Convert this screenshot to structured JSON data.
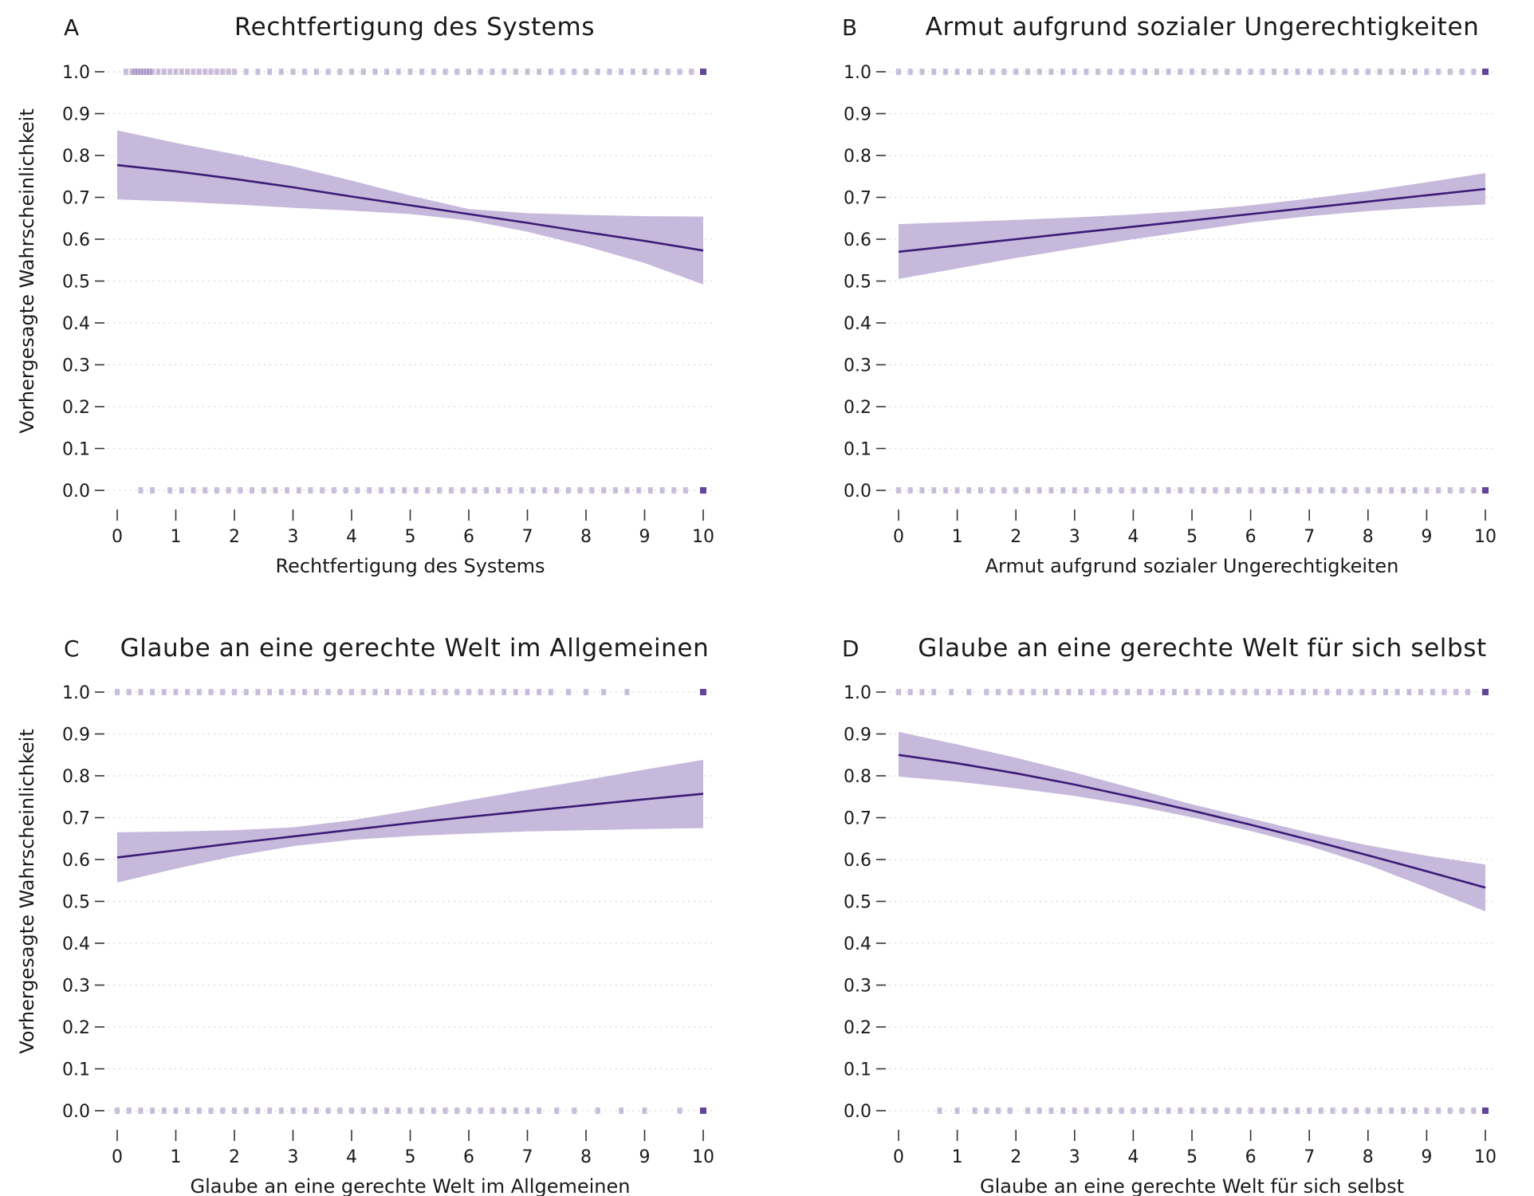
{
  "figure": {
    "ylabel": "Vorhergesagte Wahrscheinlichkeit",
    "colors": {
      "line": "#3d1a78",
      "band": "#c4b5d9",
      "rug": "#5a3a93"
    }
  },
  "chart_data": [
    {
      "type": "line",
      "panel": "A",
      "title": "Rechtfertigung des Systems",
      "xlabel": "Rechtfertigung des Systems",
      "ylabel": "Vorhergesagte Wahrscheinlichkeit",
      "xlim": [
        0,
        10
      ],
      "ylim": [
        0,
        1
      ],
      "x_ticks": [
        0,
        1,
        2,
        3,
        4,
        5,
        6,
        7,
        8,
        9,
        10
      ],
      "y_ticks": [
        "0.0",
        "0.1",
        "0.2",
        "0.3",
        "0.4",
        "0.5",
        "0.6",
        "0.7",
        "0.8",
        "0.9",
        "1.0"
      ],
      "series": [
        {
          "x": [
            0,
            1,
            2,
            3,
            4,
            5,
            6,
            7,
            8,
            9,
            10
          ],
          "y": [
            0.777,
            0.762,
            0.744,
            0.724,
            0.702,
            0.681,
            0.66,
            0.639,
            0.617,
            0.596,
            0.573
          ],
          "ci_lower": [
            0.695,
            0.69,
            0.683,
            0.675,
            0.668,
            0.66,
            0.645,
            0.618,
            0.583,
            0.543,
            0.492
          ],
          "ci_upper": [
            0.86,
            0.83,
            0.803,
            0.774,
            0.74,
            0.704,
            0.672,
            0.662,
            0.658,
            0.655,
            0.654
          ]
        }
      ],
      "rug_y1": [
        0.15,
        0.25,
        0.3,
        0.35,
        0.4,
        0.45,
        0.5,
        0.55,
        0.6,
        0.7,
        0.8,
        0.9,
        1.0,
        1.1,
        1.2,
        1.3,
        1.4,
        1.5,
        1.6,
        1.7,
        1.8,
        1.9,
        2.0,
        2.2,
        2.4,
        2.6,
        2.8,
        3.0,
        3.2,
        3.4,
        3.6,
        3.8,
        4.0,
        4.2,
        4.4,
        4.6,
        4.8,
        5.0,
        5.2,
        5.4,
        5.6,
        5.8,
        6.0,
        6.2,
        6.4,
        6.6,
        6.8,
        7.0,
        7.2,
        7.4,
        7.6,
        7.8,
        8.0,
        8.2,
        8.4,
        8.6,
        8.8,
        9.0,
        9.2,
        9.4,
        9.6,
        9.8,
        10.0
      ],
      "rug_y0": [
        0.4,
        0.6,
        0.9,
        1.1,
        1.3,
        1.5,
        1.7,
        1.9,
        2.1,
        2.3,
        2.5,
        2.7,
        2.9,
        3.1,
        3.3,
        3.5,
        3.7,
        3.9,
        4.1,
        4.3,
        4.5,
        4.7,
        4.9,
        5.1,
        5.3,
        5.5,
        5.7,
        5.9,
        6.1,
        6.3,
        6.5,
        6.7,
        6.9,
        7.1,
        7.3,
        7.5,
        7.7,
        7.9,
        8.1,
        8.3,
        8.5,
        8.7,
        8.9,
        9.1,
        9.3,
        9.5,
        9.7,
        10.0
      ]
    },
    {
      "type": "line",
      "panel": "B",
      "title": "Armut aufgrund sozialer Ungerechtigkeiten",
      "xlabel": "Armut aufgrund sozialer Ungerechtigkeiten",
      "ylabel": "",
      "xlim": [
        0,
        10
      ],
      "ylim": [
        0,
        1
      ],
      "x_ticks": [
        0,
        1,
        2,
        3,
        4,
        5,
        6,
        7,
        8,
        9,
        10
      ],
      "y_ticks": [
        "0.0",
        "0.1",
        "0.2",
        "0.3",
        "0.4",
        "0.5",
        "0.6",
        "0.7",
        "0.8",
        "0.9",
        "1.0"
      ],
      "series": [
        {
          "x": [
            0,
            1,
            2,
            3,
            4,
            5,
            6,
            7,
            8,
            9,
            10
          ],
          "y": [
            0.57,
            0.585,
            0.6,
            0.615,
            0.63,
            0.645,
            0.66,
            0.675,
            0.69,
            0.705,
            0.72
          ],
          "ci_lower": [
            0.505,
            0.53,
            0.555,
            0.578,
            0.6,
            0.62,
            0.64,
            0.655,
            0.667,
            0.676,
            0.683
          ],
          "ci_upper": [
            0.636,
            0.641,
            0.646,
            0.652,
            0.659,
            0.668,
            0.681,
            0.697,
            0.715,
            0.736,
            0.758
          ]
        }
      ],
      "rug_y1": [
        0.0,
        0.2,
        0.4,
        0.6,
        0.8,
        1.0,
        1.2,
        1.4,
        1.6,
        1.8,
        2.0,
        2.2,
        2.4,
        2.6,
        2.8,
        3.0,
        3.2,
        3.4,
        3.6,
        3.8,
        4.0,
        4.2,
        4.4,
        4.6,
        4.8,
        5.0,
        5.2,
        5.4,
        5.6,
        5.8,
        6.0,
        6.2,
        6.4,
        6.6,
        6.8,
        7.0,
        7.2,
        7.4,
        7.6,
        7.8,
        8.0,
        8.2,
        8.4,
        8.6,
        8.8,
        9.0,
        9.2,
        9.4,
        9.6,
        9.8,
        10.0
      ],
      "rug_y0": [
        0.0,
        0.2,
        0.4,
        0.6,
        0.8,
        1.0,
        1.2,
        1.4,
        1.6,
        1.8,
        2.0,
        2.2,
        2.4,
        2.6,
        2.8,
        3.0,
        3.2,
        3.4,
        3.6,
        3.8,
        4.0,
        4.2,
        4.4,
        4.6,
        4.8,
        5.0,
        5.2,
        5.4,
        5.6,
        5.8,
        6.0,
        6.2,
        6.4,
        6.6,
        6.8,
        7.0,
        7.2,
        7.4,
        7.6,
        7.8,
        8.0,
        8.2,
        8.4,
        8.6,
        8.8,
        9.0,
        9.2,
        9.4,
        9.6,
        9.8,
        10.0
      ]
    },
    {
      "type": "line",
      "panel": "C",
      "title": "Glaube an eine gerechte Welt im Allgemeinen",
      "xlabel": "Glaube an eine gerechte Welt im Allgemeinen",
      "ylabel": "Vorhergesagte Wahrscheinlichkeit",
      "xlim": [
        0,
        10
      ],
      "ylim": [
        0,
        1
      ],
      "x_ticks": [
        0,
        1,
        2,
        3,
        4,
        5,
        6,
        7,
        8,
        9,
        10
      ],
      "y_ticks": [
        "0.0",
        "0.1",
        "0.2",
        "0.3",
        "0.4",
        "0.5",
        "0.6",
        "0.7",
        "0.8",
        "0.9",
        "1.0"
      ],
      "series": [
        {
          "x": [
            0,
            1,
            2,
            3,
            4,
            5,
            6,
            7,
            8,
            9,
            10
          ],
          "y": [
            0.605,
            0.622,
            0.639,
            0.655,
            0.671,
            0.687,
            0.702,
            0.716,
            0.73,
            0.744,
            0.757
          ],
          "ci_lower": [
            0.545,
            0.578,
            0.608,
            0.632,
            0.647,
            0.656,
            0.662,
            0.667,
            0.67,
            0.673,
            0.675
          ],
          "ci_upper": [
            0.665,
            0.667,
            0.67,
            0.677,
            0.694,
            0.717,
            0.742,
            0.766,
            0.79,
            0.815,
            0.838
          ]
        }
      ],
      "rug_y1": [
        0.0,
        0.2,
        0.4,
        0.6,
        0.8,
        1.0,
        1.2,
        1.4,
        1.6,
        1.8,
        2.0,
        2.2,
        2.4,
        2.6,
        2.8,
        3.0,
        3.2,
        3.4,
        3.6,
        3.8,
        4.0,
        4.2,
        4.4,
        4.6,
        4.8,
        5.0,
        5.2,
        5.4,
        5.6,
        5.8,
        6.0,
        6.2,
        6.4,
        6.6,
        6.8,
        7.0,
        7.2,
        7.4,
        7.7,
        8.0,
        8.3,
        8.7,
        10.0
      ],
      "rug_y0": [
        0.0,
        0.2,
        0.4,
        0.6,
        0.8,
        1.0,
        1.2,
        1.4,
        1.6,
        1.8,
        2.0,
        2.2,
        2.4,
        2.6,
        2.8,
        3.0,
        3.2,
        3.4,
        3.6,
        3.8,
        4.0,
        4.2,
        4.4,
        4.6,
        4.8,
        5.0,
        5.2,
        5.4,
        5.6,
        5.8,
        6.0,
        6.2,
        6.4,
        6.6,
        6.8,
        7.0,
        7.2,
        7.5,
        7.8,
        8.2,
        8.6,
        9.0,
        9.6,
        10.0
      ]
    },
    {
      "type": "line",
      "panel": "D",
      "title": "Glaube an eine gerechte Welt für sich selbst",
      "xlabel": "Glaube an eine gerechte Welt für sich selbst",
      "ylabel": "",
      "xlim": [
        0,
        10
      ],
      "ylim": [
        0,
        1
      ],
      "x_ticks": [
        0,
        1,
        2,
        3,
        4,
        5,
        6,
        7,
        8,
        9,
        10
      ],
      "y_ticks": [
        "0.0",
        "0.1",
        "0.2",
        "0.3",
        "0.4",
        "0.5",
        "0.6",
        "0.7",
        "0.8",
        "0.9",
        "1.0"
      ],
      "series": [
        {
          "x": [
            0,
            1,
            2,
            3,
            4,
            5,
            6,
            7,
            8,
            9,
            10
          ],
          "y": [
            0.85,
            0.83,
            0.806,
            0.779,
            0.749,
            0.717,
            0.683,
            0.647,
            0.61,
            0.572,
            0.533
          ],
          "ci_lower": [
            0.798,
            0.786,
            0.77,
            0.752,
            0.729,
            0.701,
            0.668,
            0.632,
            0.587,
            0.533,
            0.476
          ],
          "ci_upper": [
            0.905,
            0.875,
            0.843,
            0.808,
            0.77,
            0.732,
            0.698,
            0.664,
            0.634,
            0.609,
            0.588
          ]
        }
      ],
      "rug_y1": [
        0.0,
        0.2,
        0.4,
        0.6,
        0.9,
        1.2,
        1.5,
        1.7,
        1.9,
        2.1,
        2.3,
        2.5,
        2.7,
        2.9,
        3.1,
        3.3,
        3.5,
        3.7,
        3.9,
        4.1,
        4.3,
        4.5,
        4.7,
        4.9,
        5.1,
        5.3,
        5.5,
        5.7,
        5.9,
        6.1,
        6.3,
        6.5,
        6.7,
        6.9,
        7.1,
        7.3,
        7.5,
        7.7,
        7.9,
        8.1,
        8.3,
        8.5,
        8.7,
        8.9,
        9.1,
        9.3,
        9.5,
        9.7,
        10.0
      ],
      "rug_y0": [
        0.7,
        1.0,
        1.3,
        1.5,
        1.7,
        1.9,
        2.2,
        2.4,
        2.6,
        2.8,
        3.0,
        3.2,
        3.4,
        3.6,
        3.8,
        4.0,
        4.2,
        4.4,
        4.6,
        4.8,
        5.0,
        5.2,
        5.4,
        5.6,
        5.8,
        6.0,
        6.2,
        6.4,
        6.6,
        6.8,
        7.0,
        7.2,
        7.4,
        7.6,
        7.8,
        8.0,
        8.2,
        8.4,
        8.6,
        8.8,
        9.0,
        9.2,
        9.4,
        9.6,
        9.8,
        10.0
      ]
    }
  ]
}
